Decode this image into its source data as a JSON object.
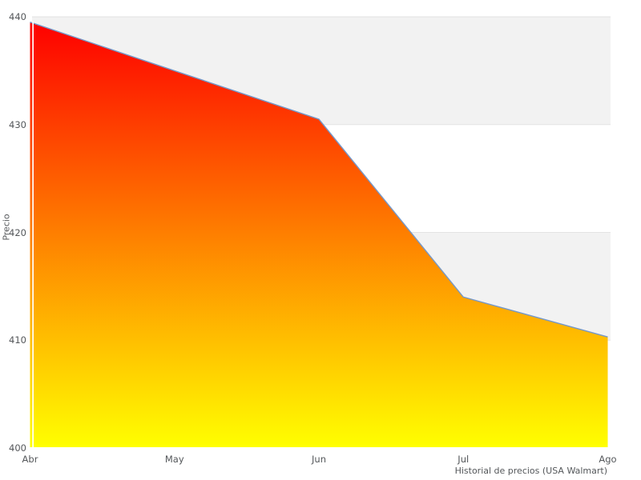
{
  "chart": {
    "ylabel": "Precio",
    "caption": "Historial de precios (USA Walmart)"
  },
  "chart_data": {
    "type": "area",
    "title": "Historial de precios (USA Walmart)",
    "xlabel": "",
    "ylabel": "Precio",
    "categories": [
      "Abr",
      "May",
      "Jun",
      "Jul",
      "Ago"
    ],
    "values": [
      439.5,
      435.0,
      430.5,
      414.0,
      410.3
    ],
    "ylim": [
      400,
      440
    ],
    "y_ticks": [
      400,
      410,
      420,
      430,
      440
    ],
    "legend": "none",
    "grid": "horizontal gridlines with alternating shaded bands",
    "band_ranges": [
      [
        430,
        440
      ],
      [
        410,
        420
      ]
    ],
    "colors": {
      "line": "#7598c9",
      "area_gradient_top": "#fe0000",
      "area_gradient_bottom": "#ffff00",
      "band": "#f2f2f2",
      "gridline": "#e3e3e3",
      "text": "#54575a",
      "background": "#ffffff"
    }
  }
}
